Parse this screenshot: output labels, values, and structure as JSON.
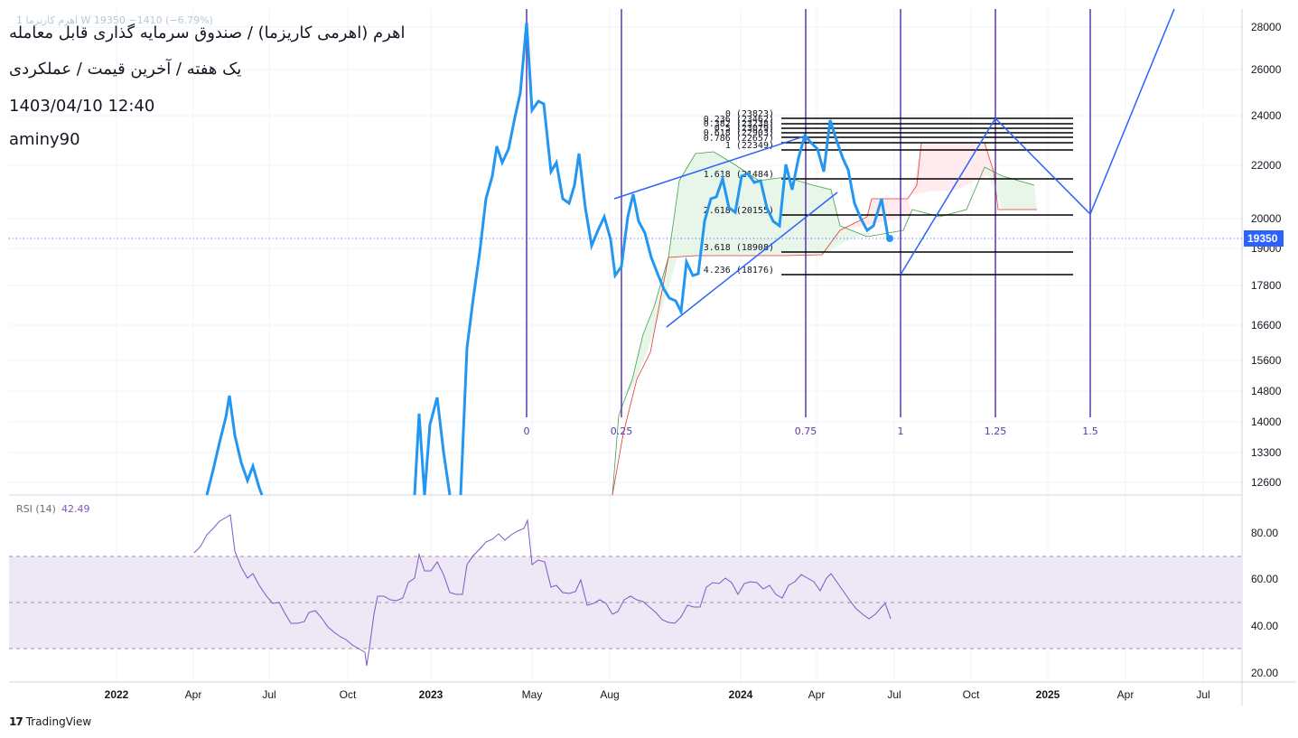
{
  "header": {
    "faded_line": "1 اهرم کاریزما W 19350 −1410 (−6.79%)",
    "title_line1": "اهرم (اهرمی کاریزما) / صندوق سرمایه گذاری قابل معامله",
    "title_line2": "یک هفته / آخرین قیمت / عملکردی",
    "datetime": "1403/04/10 12:40",
    "author": "aminy90"
  },
  "rsi": {
    "label": "RSI (14)",
    "value": "42.49"
  },
  "brand": {
    "logo": "17",
    "name": "TradingView"
  },
  "chart_data": {
    "type": "line",
    "price_axis": {
      "ticks": [
        28000,
        26000,
        24000,
        22000,
        20000,
        19000,
        17800,
        16600,
        15600,
        14800,
        14000,
        13300,
        12600
      ],
      "tick_labels": [
        "28000",
        "26000",
        "24000",
        "22000",
        "20000",
        "19000",
        "17800",
        "16600",
        "15600",
        "14800",
        "14000",
        "13300",
        "12600"
      ],
      "last_price": "19350",
      "last_price_color": "#2962ff"
    },
    "time_axis": {
      "labels": [
        "2022",
        "Apr",
        "Jul",
        "Oct",
        "2023",
        "May",
        "Aug",
        "2024",
        "Apr",
        "Jul",
        "Oct",
        "2025",
        "Apr",
        "Jul"
      ],
      "bold": [
        "2022",
        "2023",
        "2024",
        "2025"
      ]
    },
    "price_series": {
      "name": "",
      "color": "#2196f3",
      "x": [
        "2022-04-25",
        "2022-05-02",
        "2022-05-09",
        "2022-05-16",
        "2022-05-23",
        "2022-05-30",
        "2022-06-06",
        "2022-06-13",
        "2022-06-20",
        "2022-06-27"
      ],
      "y": [
        12600,
        13000,
        13700,
        14200,
        14700,
        13900,
        13200,
        12800,
        13100,
        12700
      ]
    },
    "fibonacci_retracement": {
      "levels": [
        {
          "ratio": "0",
          "value": 23823
        },
        {
          "ratio": "0.236",
          "value": 23462
        },
        {
          "ratio": "0.382",
          "value": 23238
        },
        {
          "ratio": "0.5",
          "value": 23079
        },
        {
          "ratio": "0.618",
          "value": 22903
        },
        {
          "ratio": "0.786",
          "value": 22657
        },
        {
          "ratio": "1",
          "value": 22349
        },
        {
          "ratio": "1.618",
          "value": 21484
        },
        {
          "ratio": "2.618",
          "value": 20155
        },
        {
          "ratio": "3.618",
          "value": 18908
        },
        {
          "ratio": "4.236",
          "value": 18176
        }
      ],
      "labels": [
        "0 (23823)",
        "0.236 (23462)",
        "0.382 (23238)",
        "0.5 (23079)",
        "0.618 (22903)",
        "0.786 (22657)",
        "1 (22349)",
        "1.618 (21484)",
        "2.618 (20155)",
        "3.618 (18908)",
        "4.236 (18176)"
      ]
    },
    "fib_time_zones": {
      "labels": [
        "0",
        "0.25",
        "0.75",
        "1",
        "1.25",
        "1.5"
      ],
      "color": "#5e35b1"
    },
    "rsi_axis": {
      "ticks": [
        80,
        60,
        40,
        20
      ],
      "tick_labels": [
        "80.00",
        "60.00",
        "40.00",
        "20.00"
      ],
      "bands": [
        70,
        50,
        30
      ]
    },
    "colors": {
      "price": "#2196f3",
      "trendline": "#2962ff",
      "rsi": "#7e57c2",
      "rsi_band": "#ede7f6",
      "cloud_green": "#e8f5e9",
      "cloud_red": "#ffebee",
      "fib": "#000000"
    },
    "grid": true
  }
}
